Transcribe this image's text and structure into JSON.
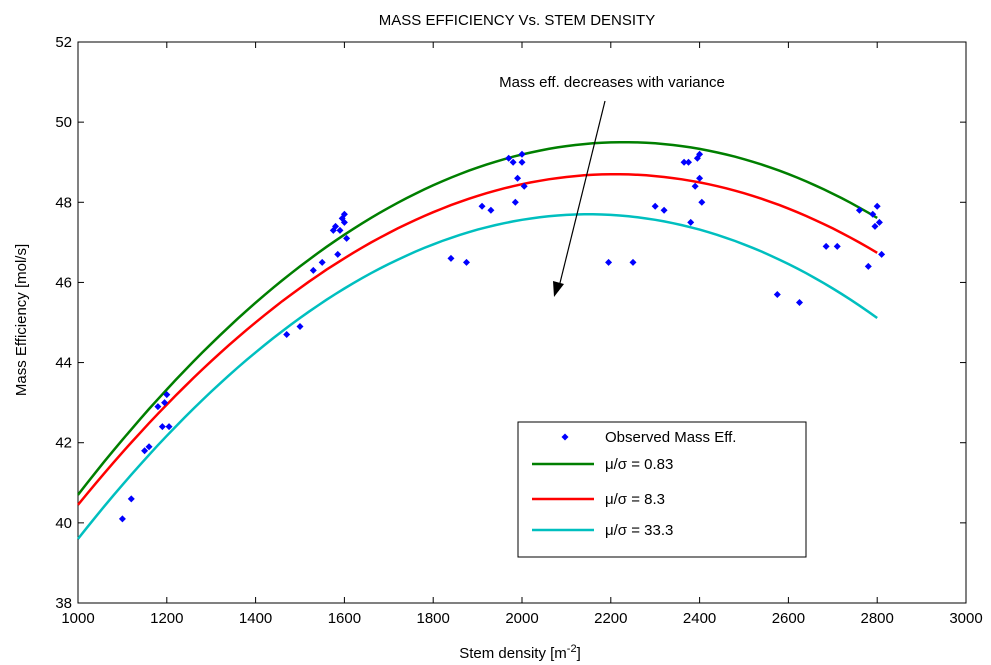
{
  "chart_data": {
    "type": "scatter",
    "title": "MASS EFFICIENCY Vs. STEM DENSITY",
    "xlabel": "Stem density [m",
    "xlabel_sup": "-2",
    "xlabel_end": "]",
    "ylabel": "Mass Efficiency [mol/s]",
    "xlim": [
      1000,
      3000
    ],
    "ylim": [
      38,
      52
    ],
    "xticks": [
      "1000",
      "1200",
      "1400",
      "1600",
      "1800",
      "2000",
      "2200",
      "2400",
      "2600",
      "2800",
      "3000"
    ],
    "yticks": [
      "38",
      "40",
      "42",
      "44",
      "46",
      "48",
      "50",
      "52"
    ],
    "annotation": "Mass eff. decreases with variance",
    "legend_position": "inside lower-right",
    "scatter_series": {
      "name": "Observed Mass Eff.",
      "color": "#0000ff",
      "points": [
        [
          1100,
          40.1
        ],
        [
          1120,
          40.6
        ],
        [
          1150,
          41.8
        ],
        [
          1160,
          41.9
        ],
        [
          1180,
          42.9
        ],
        [
          1190,
          42.4
        ],
        [
          1195,
          43.0
        ],
        [
          1200,
          43.2
        ],
        [
          1205,
          42.4
        ],
        [
          1470,
          44.7
        ],
        [
          1500,
          44.9
        ],
        [
          1530,
          46.3
        ],
        [
          1550,
          46.5
        ],
        [
          1575,
          47.3
        ],
        [
          1580,
          47.4
        ],
        [
          1585,
          46.7
        ],
        [
          1590,
          47.3
        ],
        [
          1595,
          47.6
        ],
        [
          1600,
          47.7
        ],
        [
          1600,
          47.5
        ],
        [
          1605,
          47.1
        ],
        [
          1840,
          46.6
        ],
        [
          1875,
          46.5
        ],
        [
          1910,
          47.9
        ],
        [
          1930,
          47.8
        ],
        [
          1970,
          49.1
        ],
        [
          1980,
          49.0
        ],
        [
          1985,
          48.0
        ],
        [
          1990,
          48.6
        ],
        [
          2000,
          49.2
        ],
        [
          2000,
          49.0
        ],
        [
          2005,
          48.4
        ],
        [
          2195,
          46.5
        ],
        [
          2250,
          46.5
        ],
        [
          2300,
          47.9
        ],
        [
          2320,
          47.8
        ],
        [
          2365,
          49.0
        ],
        [
          2375,
          49.0
        ],
        [
          2380,
          47.5
        ],
        [
          2390,
          48.4
        ],
        [
          2395,
          49.1
        ],
        [
          2400,
          49.2
        ],
        [
          2400,
          48.6
        ],
        [
          2405,
          48.0
        ],
        [
          2575,
          45.7
        ],
        [
          2625,
          45.5
        ],
        [
          2685,
          46.9
        ],
        [
          2710,
          46.9
        ],
        [
          2760,
          47.8
        ],
        [
          2780,
          46.4
        ],
        [
          2790,
          47.7
        ],
        [
          2795,
          47.4
        ],
        [
          2800,
          47.9
        ],
        [
          2805,
          47.5
        ],
        [
          2810,
          46.7
        ]
      ]
    },
    "series": [
      {
        "name": "μ/σ = 0.83",
        "color": "#007f00",
        "x_start": 1000,
        "x_end": 2800,
        "peak_x": 2230,
        "peak_y": 49.5,
        "y_at_start": 40.7
      },
      {
        "name": "μ/σ = 8.3",
        "color": "#ff0000",
        "x_start": 1000,
        "x_end": 2800,
        "peak_x": 2210,
        "peak_y": 48.7,
        "y_at_start": 40.45
      },
      {
        "name": "μ/σ = 33.3",
        "color": "#00bfbf",
        "x_start": 1000,
        "x_end": 2800,
        "peak_x": 2150,
        "peak_y": 47.7,
        "y_at_start": 39.6
      }
    ]
  }
}
